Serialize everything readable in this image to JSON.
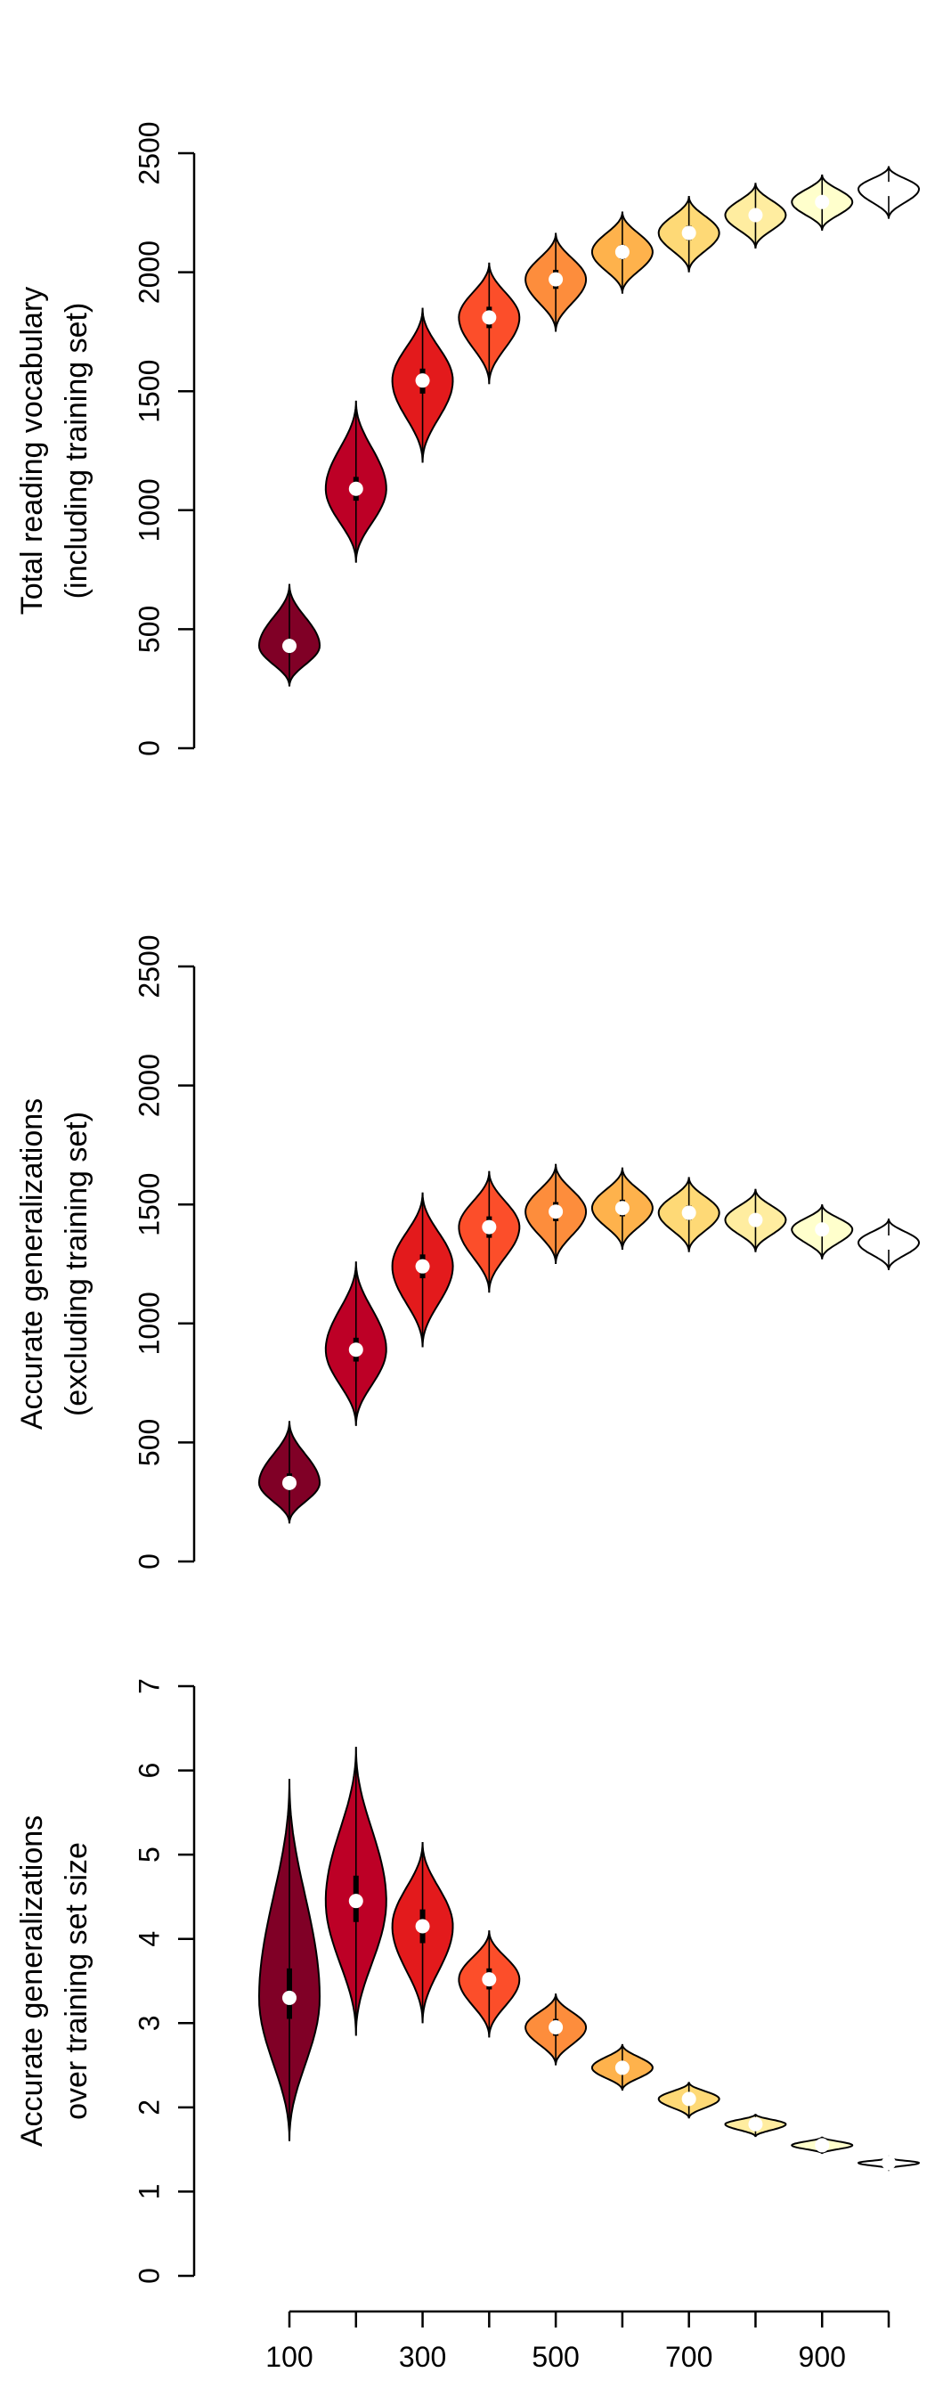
{
  "chart_data": [
    {
      "type": "violin",
      "ylabel": [
        "Total reading vocabulary",
        "(including training set)"
      ],
      "ylim": [
        0,
        2500
      ],
      "yticks": [
        0,
        500,
        1000,
        1500,
        2000,
        2500
      ],
      "x": [
        100,
        200,
        300,
        400,
        500,
        600,
        700,
        800,
        900,
        1000
      ],
      "medians": [
        430,
        1090,
        1545,
        1810,
        1970,
        2085,
        2165,
        2240,
        2295,
        2350
      ],
      "min": [
        260,
        780,
        1200,
        1530,
        1750,
        1910,
        2000,
        2100,
        2175,
        2225
      ],
      "max": [
        690,
        1460,
        1850,
        2040,
        2165,
        2255,
        2320,
        2375,
        2410,
        2445
      ],
      "q1": [
        400,
        1040,
        1490,
        1765,
        1930,
        2055,
        2135,
        2215,
        2270,
        2330
      ],
      "q3": [
        460,
        1140,
        1595,
        1855,
        2010,
        2115,
        2195,
        2265,
        2320,
        2370
      ],
      "fill_colors": [
        "#800026",
        "#bd0026",
        "#e31a1c",
        "#fc4e2a",
        "#fd8d3c",
        "#feb24c",
        "#fed976",
        "#ffeda0",
        "#ffffcc",
        "#ffffff"
      ]
    },
    {
      "type": "violin",
      "ylabel": [
        "Accurate generalizations",
        "(excluding training set)"
      ],
      "ylim": [
        0,
        2500
      ],
      "yticks": [
        0,
        500,
        1000,
        1500,
        2000,
        2500
      ],
      "x": [
        100,
        200,
        300,
        400,
        500,
        600,
        700,
        800,
        900,
        1000
      ],
      "medians": [
        330,
        890,
        1240,
        1405,
        1470,
        1485,
        1465,
        1435,
        1395,
        1340
      ],
      "min": [
        160,
        570,
        900,
        1130,
        1250,
        1310,
        1300,
        1300,
        1270,
        1225
      ],
      "max": [
        590,
        1260,
        1550,
        1640,
        1670,
        1655,
        1615,
        1565,
        1500,
        1440
      ],
      "q1": [
        300,
        840,
        1190,
        1360,
        1430,
        1450,
        1435,
        1410,
        1370,
        1320
      ],
      "q3": [
        370,
        940,
        1290,
        1450,
        1510,
        1520,
        1495,
        1460,
        1420,
        1365
      ],
      "fill_colors": [
        "#800026",
        "#bd0026",
        "#e31a1c",
        "#fc4e2a",
        "#fd8d3c",
        "#feb24c",
        "#fed976",
        "#ffeda0",
        "#ffffcc",
        "#ffffff"
      ]
    },
    {
      "type": "violin",
      "ylabel": [
        "Accurate generalizations",
        "over training set size"
      ],
      "ylim": [
        0,
        7
      ],
      "yticks": [
        0,
        1,
        2,
        3,
        4,
        5,
        6,
        7
      ],
      "x": [
        100,
        200,
        300,
        400,
        500,
        600,
        700,
        800,
        900,
        1000
      ],
      "xticks": [
        100,
        200,
        300,
        400,
        500,
        600,
        700,
        800,
        900,
        1000
      ],
      "xtick_labels": [
        "100",
        "",
        "300",
        "",
        "500",
        "",
        "700",
        "",
        "900",
        ""
      ],
      "medians": [
        3.3,
        4.45,
        4.15,
        3.52,
        2.95,
        2.47,
        2.1,
        1.8,
        1.55,
        1.34
      ],
      "min": [
        1.6,
        2.85,
        3.0,
        2.83,
        2.5,
        2.2,
        1.87,
        1.65,
        1.45,
        1.27
      ],
      "max": [
        5.9,
        6.28,
        5.15,
        4.1,
        3.35,
        2.75,
        2.3,
        1.92,
        1.65,
        1.4
      ],
      "q1": [
        3.05,
        4.2,
        3.95,
        3.4,
        2.85,
        2.4,
        2.05,
        1.77,
        1.53,
        1.32
      ],
      "q3": [
        3.65,
        4.75,
        4.35,
        3.65,
        3.05,
        2.55,
        2.15,
        1.83,
        1.58,
        1.36
      ],
      "fill_colors": [
        "#800026",
        "#bd0026",
        "#e31a1c",
        "#fc4e2a",
        "#fd8d3c",
        "#feb24c",
        "#fed976",
        "#ffeda0",
        "#ffffcc",
        "#ffffff"
      ]
    }
  ]
}
